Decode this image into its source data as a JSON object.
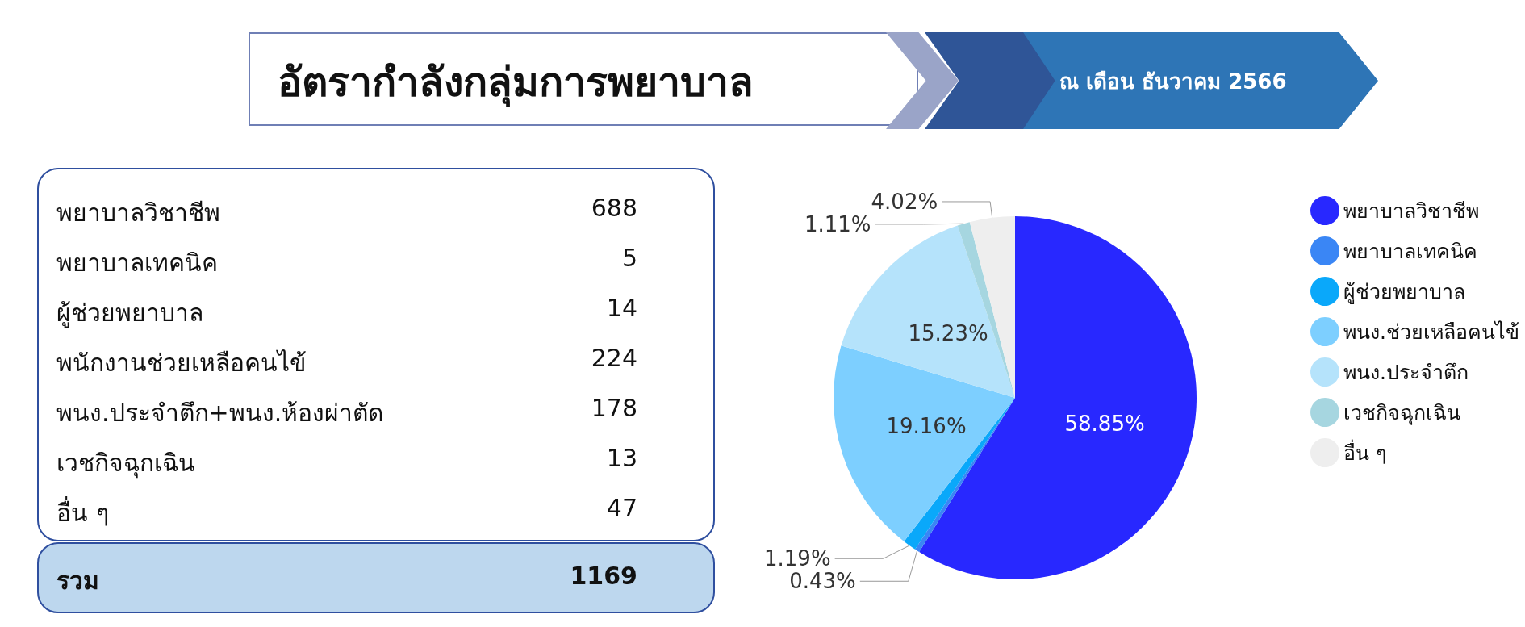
{
  "chart_data": [
    {
      "type": "other",
      "title": "อัตรากำลังกลุ่มการพยาบาล",
      "subtitle": "ณ เดือน ธันวาคม 2566",
      "categories": [
        "พยาบาลวิชาชีพ",
        "พยาบาลเทคนิค",
        "ผู้ช่วยพยาบาล",
        "พนักงานช่วยเหลือคนไข้",
        "พนง.ประจำตึก+พนง.ห้องผ่าตัด",
        "เวชกิจฉุกเฉิน",
        "อื่น ๆ",
        "รวม"
      ],
      "values": [
        688,
        5,
        14,
        224,
        178,
        13,
        47,
        1169
      ],
      "data_labels": true
    },
    {
      "type": "pie",
      "categories": [
        "พยาบาลวิชาชีพ",
        "พยาบาลเทคนิค",
        "ผู้ช่วยพยาบาล",
        "พนง.ช่วยเหลือคนไข้",
        "พนง.ประจำตึก",
        "เวชกิจฉุกเฉิน",
        "อื่น ๆ"
      ],
      "values": [
        58.85,
        0.43,
        1.19,
        19.16,
        15.23,
        1.11,
        4.02
      ],
      "colors": [
        "#2828ff",
        "#3a86f5",
        "#0aa8fa",
        "#7dcfff",
        "#b5e3fb",
        "#a6d6e0",
        "#eeeeee"
      ],
      "value_labels": [
        "58.85%",
        "0.43%",
        "1.19%",
        "19.16%",
        "15.23%",
        "1.11%",
        "4.02%"
      ],
      "legend": "right"
    }
  ]
}
